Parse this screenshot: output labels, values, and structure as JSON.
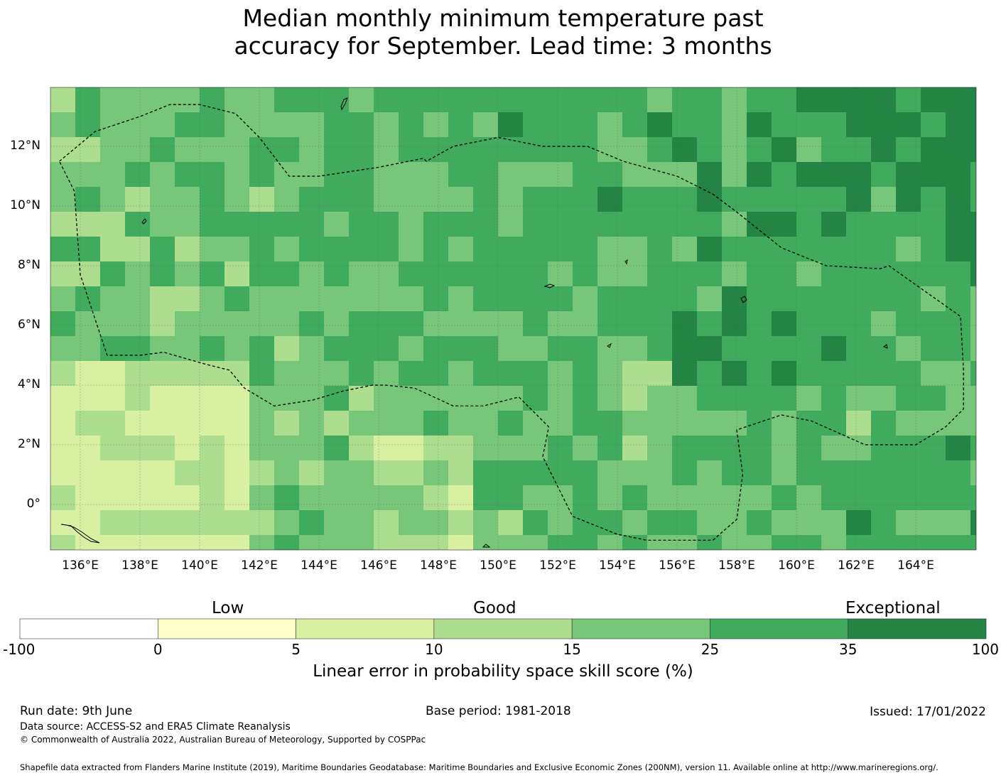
{
  "title_line1": "Median monthly minimum temperature past",
  "title_line2": "accuracy for September. Lead time: 3 months",
  "map": {
    "lon_ticks": [
      "136°E",
      "138°E",
      "140°E",
      "142°E",
      "144°E",
      "146°E",
      "148°E",
      "150°E",
      "152°E",
      "154°E",
      "156°E",
      "158°E",
      "160°E",
      "162°E",
      "164°E"
    ],
    "lat_ticks": [
      "12°N",
      "10°N",
      "8°N",
      "6°N",
      "4°N",
      "2°N",
      "0°"
    ],
    "lon_values": [
      136,
      138,
      140,
      142,
      144,
      146,
      148,
      150,
      152,
      154,
      156,
      158,
      160,
      162,
      164
    ],
    "lat_values": [
      12,
      10,
      8,
      6,
      4,
      2,
      0
    ],
    "lon_range": [
      135,
      166
    ],
    "lat_range": [
      -1.5,
      14
    ],
    "eez_boundary": [
      [
        135.3,
        11.5
      ],
      [
        136.5,
        12.5
      ],
      [
        138,
        13
      ],
      [
        139,
        13.4
      ],
      [
        140,
        13.4
      ],
      [
        141.2,
        13.1
      ],
      [
        142,
        12.3
      ],
      [
        143,
        11
      ],
      [
        144,
        11
      ],
      [
        146,
        11.3
      ],
      [
        147.5,
        11.6
      ],
      [
        147.6,
        11.5
      ],
      [
        148.5,
        12
      ],
      [
        150,
        12.3
      ],
      [
        151.5,
        12
      ],
      [
        153,
        12
      ],
      [
        154.2,
        11.5
      ],
      [
        156,
        11
      ],
      [
        157.2,
        10.4
      ],
      [
        158,
        9.8
      ],
      [
        159.5,
        8.6
      ],
      [
        161,
        8
      ],
      [
        162.8,
        7.9
      ],
      [
        163.1,
        8
      ],
      [
        165.5,
        6.3
      ],
      [
        165.6,
        4.5
      ],
      [
        165.6,
        3.2
      ],
      [
        165,
        2.6
      ],
      [
        164,
        2
      ],
      [
        162.3,
        2
      ],
      [
        160.5,
        2.8
      ],
      [
        159.5,
        3
      ],
      [
        158,
        2.5
      ],
      [
        158.2,
        1
      ],
      [
        158,
        -0.5
      ],
      [
        157.2,
        -1.2
      ],
      [
        155,
        -1.2
      ],
      [
        154,
        -1
      ],
      [
        152.5,
        -0.4
      ],
      [
        151.5,
        1.6
      ],
      [
        151.7,
        2.6
      ],
      [
        150.7,
        3.6
      ],
      [
        149.5,
        3.3
      ],
      [
        148.5,
        3.3
      ],
      [
        147.2,
        3.9
      ],
      [
        146.2,
        4
      ],
      [
        145.8,
        4
      ],
      [
        144.8,
        3.8
      ],
      [
        143.8,
        3.5
      ],
      [
        142.5,
        3.3
      ],
      [
        141.5,
        3.9
      ],
      [
        141,
        4.5
      ],
      [
        140.2,
        4.7
      ],
      [
        138.8,
        5.1
      ],
      [
        138,
        5
      ],
      [
        136.9,
        5
      ],
      [
        136,
        7.7
      ],
      [
        135.8,
        10.5
      ],
      [
        135.3,
        11.5
      ]
    ],
    "colors": {
      "c0": "#ffffcc",
      "c1": "#d9f0a3",
      "c2": "#addd8e",
      "c3": "#78c679",
      "c4": "#41ab5d",
      "c5": "#238443"
    }
  },
  "colorbar": {
    "category_low": "Low",
    "category_good": "Good",
    "category_exceptional": "Exceptional",
    "ticks": [
      "-100",
      "0",
      "5",
      "10",
      "15",
      "25",
      "35",
      "100"
    ],
    "colors": [
      "#ffffff",
      "#ffffcc",
      "#d9f0a3",
      "#addd8e",
      "#78c679",
      "#41ab5d",
      "#238443"
    ],
    "label": "Linear error in probability space skill score (%)"
  },
  "footer": {
    "run_date": "Run date: 9th June",
    "base_period": "Base period: 1981-2018",
    "issued": "Issued: 17/01/2022",
    "data_source": "Data source: ACCESS-S2 and ERA5 Climate Reanalysis",
    "copyright": "© Commonwealth of Australia 2022, Australian Bureau of Meteorology, Supported by COSPPac",
    "shapefile": "Shapefile data extracted from Flanders Marine Institute (2019), Maritime Boundaries Geodatabase: Maritime Boundaries and Exclusive Economic Zones (200NM), version 11. Available online at http://www.marineregions.org/."
  }
}
